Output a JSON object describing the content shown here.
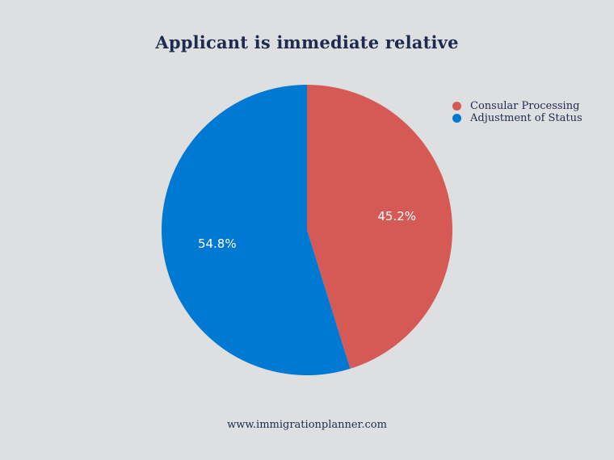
{
  "chart_data": {
    "type": "pie",
    "title": "Applicant is immediate relative",
    "slices": [
      {
        "label": "Consular Processing",
        "value": 45.2,
        "value_label": "45.2%",
        "color": "#d55a56"
      },
      {
        "label": "Adjustment of Status",
        "value": 54.8,
        "value_label": "54.8%",
        "color": "#0079d3"
      }
    ],
    "legend_position": "top-right"
  },
  "footer": "www.immigrationplanner.com",
  "colors": {
    "background": "#dddfe1",
    "text": "#1c2b4f"
  }
}
